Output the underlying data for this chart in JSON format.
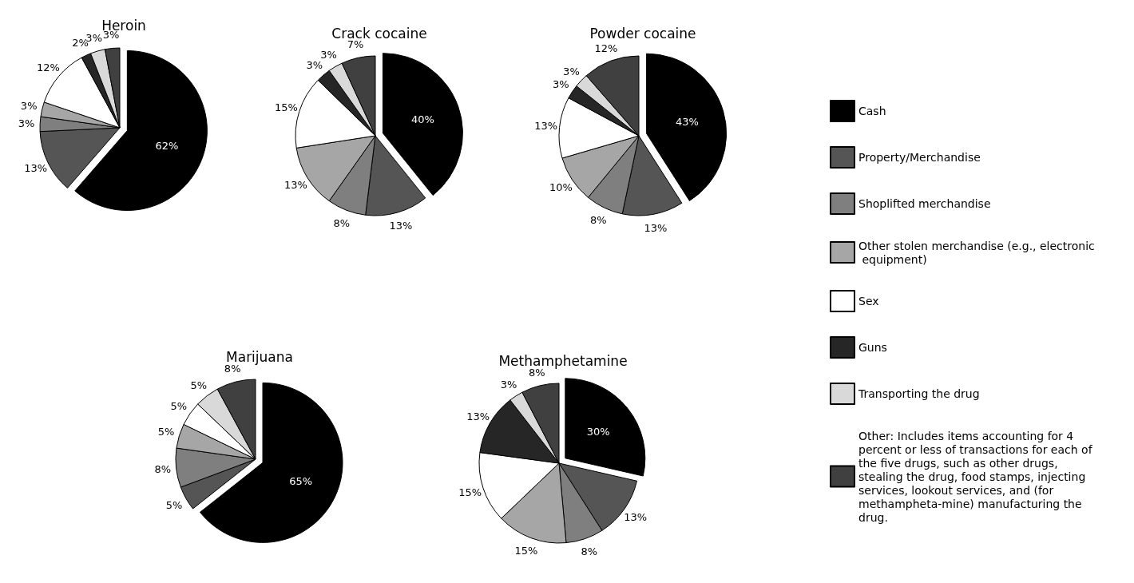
{
  "chart_data": {
    "type": "pie",
    "legend": "right",
    "categories": [
      "Cash",
      "Property/Merchandise",
      "Shoplifted merchandise",
      "Other stolen merchandise (e.g., electronic equipment)",
      "Sex",
      "Guns",
      "Transporting the drug",
      "Other: Includes items accounting for 4 percent or less of transactions for each of the five drugs, such as other drugs, stealing the drug, food stamps, injecting services, lookout services, and (for methampheta-mine) manufacturing the drug."
    ],
    "colors": [
      "#000000",
      "#555555",
      "#7f7f7f",
      "#a6a6a6",
      "#ffffff",
      "#262626",
      "#d9d9d9",
      "#404040"
    ],
    "series": [
      {
        "name": "Heroin",
        "values": [
          62,
          13,
          3,
          3,
          12,
          2,
          3,
          3
        ],
        "value_labels": [
          "62%",
          "13%",
          "3%",
          "3%",
          "12%",
          "2%",
          "3%",
          "3%"
        ]
      },
      {
        "name": "Crack cocaine",
        "values": [
          40,
          13,
          8,
          13,
          15,
          3,
          3,
          7
        ],
        "value_labels": [
          "40%",
          "13%",
          "8%",
          "13%",
          "15%",
          "3%",
          "3%",
          "7%"
        ]
      },
      {
        "name": "Powder cocaine",
        "values": [
          43,
          13,
          8,
          10,
          13,
          3,
          3,
          12
        ],
        "value_labels": [
          "43%",
          "13%",
          "8%",
          "10%",
          "13%",
          "3%",
          "3%",
          "12%"
        ]
      },
      {
        "name": "Marijuana",
        "values": [
          65,
          5,
          8,
          5,
          5,
          null,
          5,
          8
        ],
        "value_labels": [
          "65%",
          "5%",
          "8%",
          "5%",
          "5%",
          null,
          "5%",
          "8%"
        ]
      },
      {
        "name": "Methamphetamine",
        "values": [
          30,
          13,
          8,
          15,
          15,
          13,
          3,
          8
        ],
        "value_labels": [
          "30%",
          "13%",
          "8%",
          "15%",
          "15%",
          "13%",
          "3%",
          "8%"
        ]
      }
    ]
  }
}
